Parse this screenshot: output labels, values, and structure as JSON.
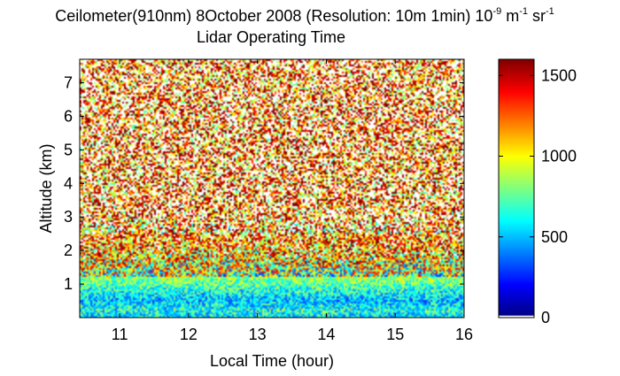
{
  "chart_data": {
    "type": "heatmap",
    "title": {
      "main_prefix": "Ceilometer(910nm) 8October 2008 (Resolution: 10m 1min) 10",
      "exp1": "-9",
      "mid": " m",
      "exp2": "-1",
      "mid2": " sr",
      "exp3": "-1",
      "subtitle": "Lidar Operating Time"
    },
    "xlabel": "Local Time (hour)",
    "ylabel": "Altitude (km)",
    "xlim": [
      10.42,
      16.0
    ],
    "ylim": [
      0.0,
      7.7
    ],
    "xticks": [
      {
        "value": 11,
        "label": "11"
      },
      {
        "value": 12,
        "label": "12"
      },
      {
        "value": 13,
        "label": "13"
      },
      {
        "value": 14,
        "label": "14"
      },
      {
        "value": 15,
        "label": "15"
      },
      {
        "value": 16,
        "label": "16"
      }
    ],
    "yticks": [
      {
        "value": 1,
        "label": "1"
      },
      {
        "value": 2,
        "label": "2"
      },
      {
        "value": 3,
        "label": "3"
      },
      {
        "value": 4,
        "label": "4"
      },
      {
        "value": 5,
        "label": "5"
      },
      {
        "value": 6,
        "label": "6"
      },
      {
        "value": 7,
        "label": "7"
      }
    ],
    "colorbar": {
      "range": [
        0,
        1600
      ],
      "ticks": [
        {
          "value": 0,
          "label": "0"
        },
        {
          "value": 500,
          "label": "500"
        },
        {
          "value": 1000,
          "label": "1000"
        },
        {
          "value": 1500,
          "label": "1500"
        }
      ],
      "colormap": "jet"
    },
    "grid": false,
    "field_profile": [
      {
        "altitude_km": 0.05,
        "value": 600
      },
      {
        "altitude_km": 0.2,
        "value": 700
      },
      {
        "altitude_km": 0.5,
        "value": 500
      },
      {
        "altitude_km": 1.0,
        "value": 750
      },
      {
        "altitude_km": 1.5,
        "value": 950
      },
      {
        "altitude_km": 2.0,
        "value": 1200
      },
      {
        "altitude_km": 3.0,
        "value": 1550
      },
      {
        "altitude_km": 7.7,
        "value": 1600
      }
    ]
  }
}
